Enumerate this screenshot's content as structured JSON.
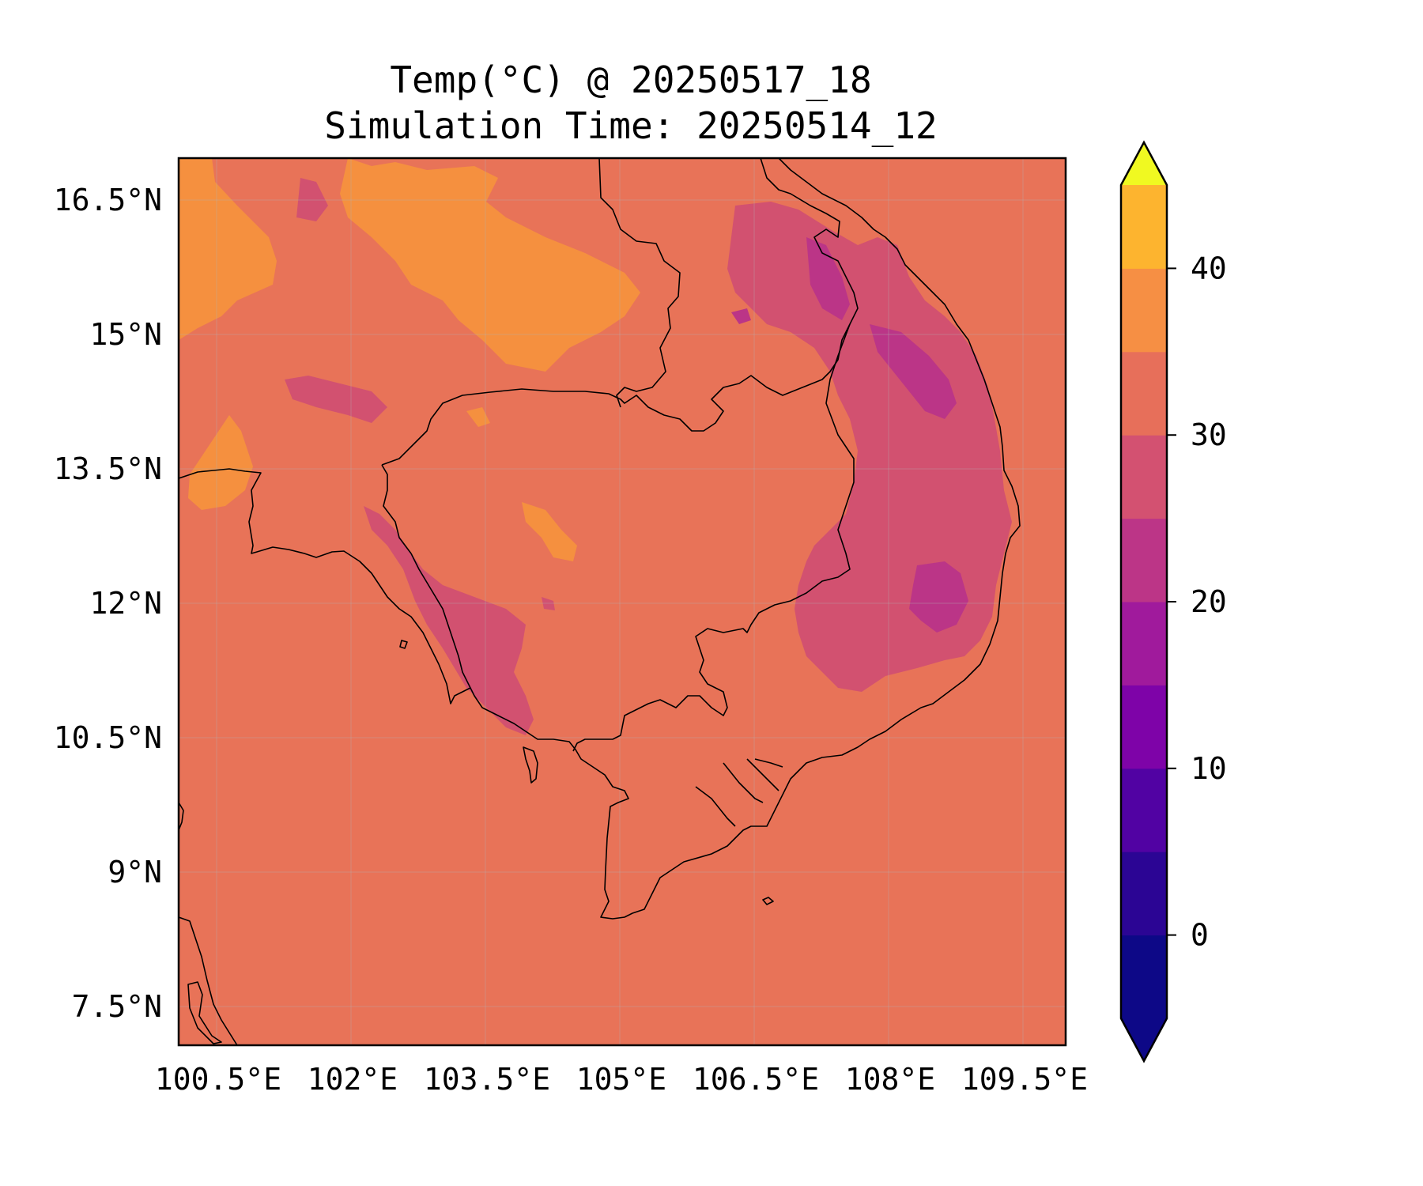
{
  "title": {
    "line1": "Temp(°C) @ 20250517_18",
    "line2": "Simulation Time: 20250514_12"
  },
  "map": {
    "x_ticks": [
      "100.5°E",
      "102°E",
      "103.5°E",
      "105°E",
      "106.5°E",
      "108°E",
      "109.5°E"
    ],
    "x_values": [
      100.5,
      102,
      103.5,
      105,
      106.5,
      108,
      109.5
    ],
    "y_ticks": [
      "16.5°N",
      "15°N",
      "13.5°N",
      "12°N",
      "10.5°N",
      "9°N",
      "7.5°N"
    ],
    "y_values": [
      16.5,
      15,
      13.5,
      12,
      10.5,
      9,
      7.5
    ],
    "lon_range": [
      100.5,
      110.4
    ],
    "lat_range": [
      7.1,
      17.0
    ],
    "grid": true
  },
  "colorbar": {
    "ticks": [
      "40",
      "30",
      "20",
      "10",
      "0"
    ],
    "tick_values": [
      40,
      30,
      20,
      10,
      0
    ],
    "levels": [
      -5,
      0,
      5,
      10,
      15,
      20,
      25,
      30,
      35,
      40,
      45
    ],
    "extend": "both",
    "colormap": "plasma",
    "colors": [
      "#0d0887",
      "#2b0594",
      "#5102a3",
      "#7e03a8",
      "#a01a9c",
      "#bc3587",
      "#d35171",
      "#e76f5a",
      "#f68f44",
      "#fdb42f",
      "#f0f921"
    ]
  }
}
